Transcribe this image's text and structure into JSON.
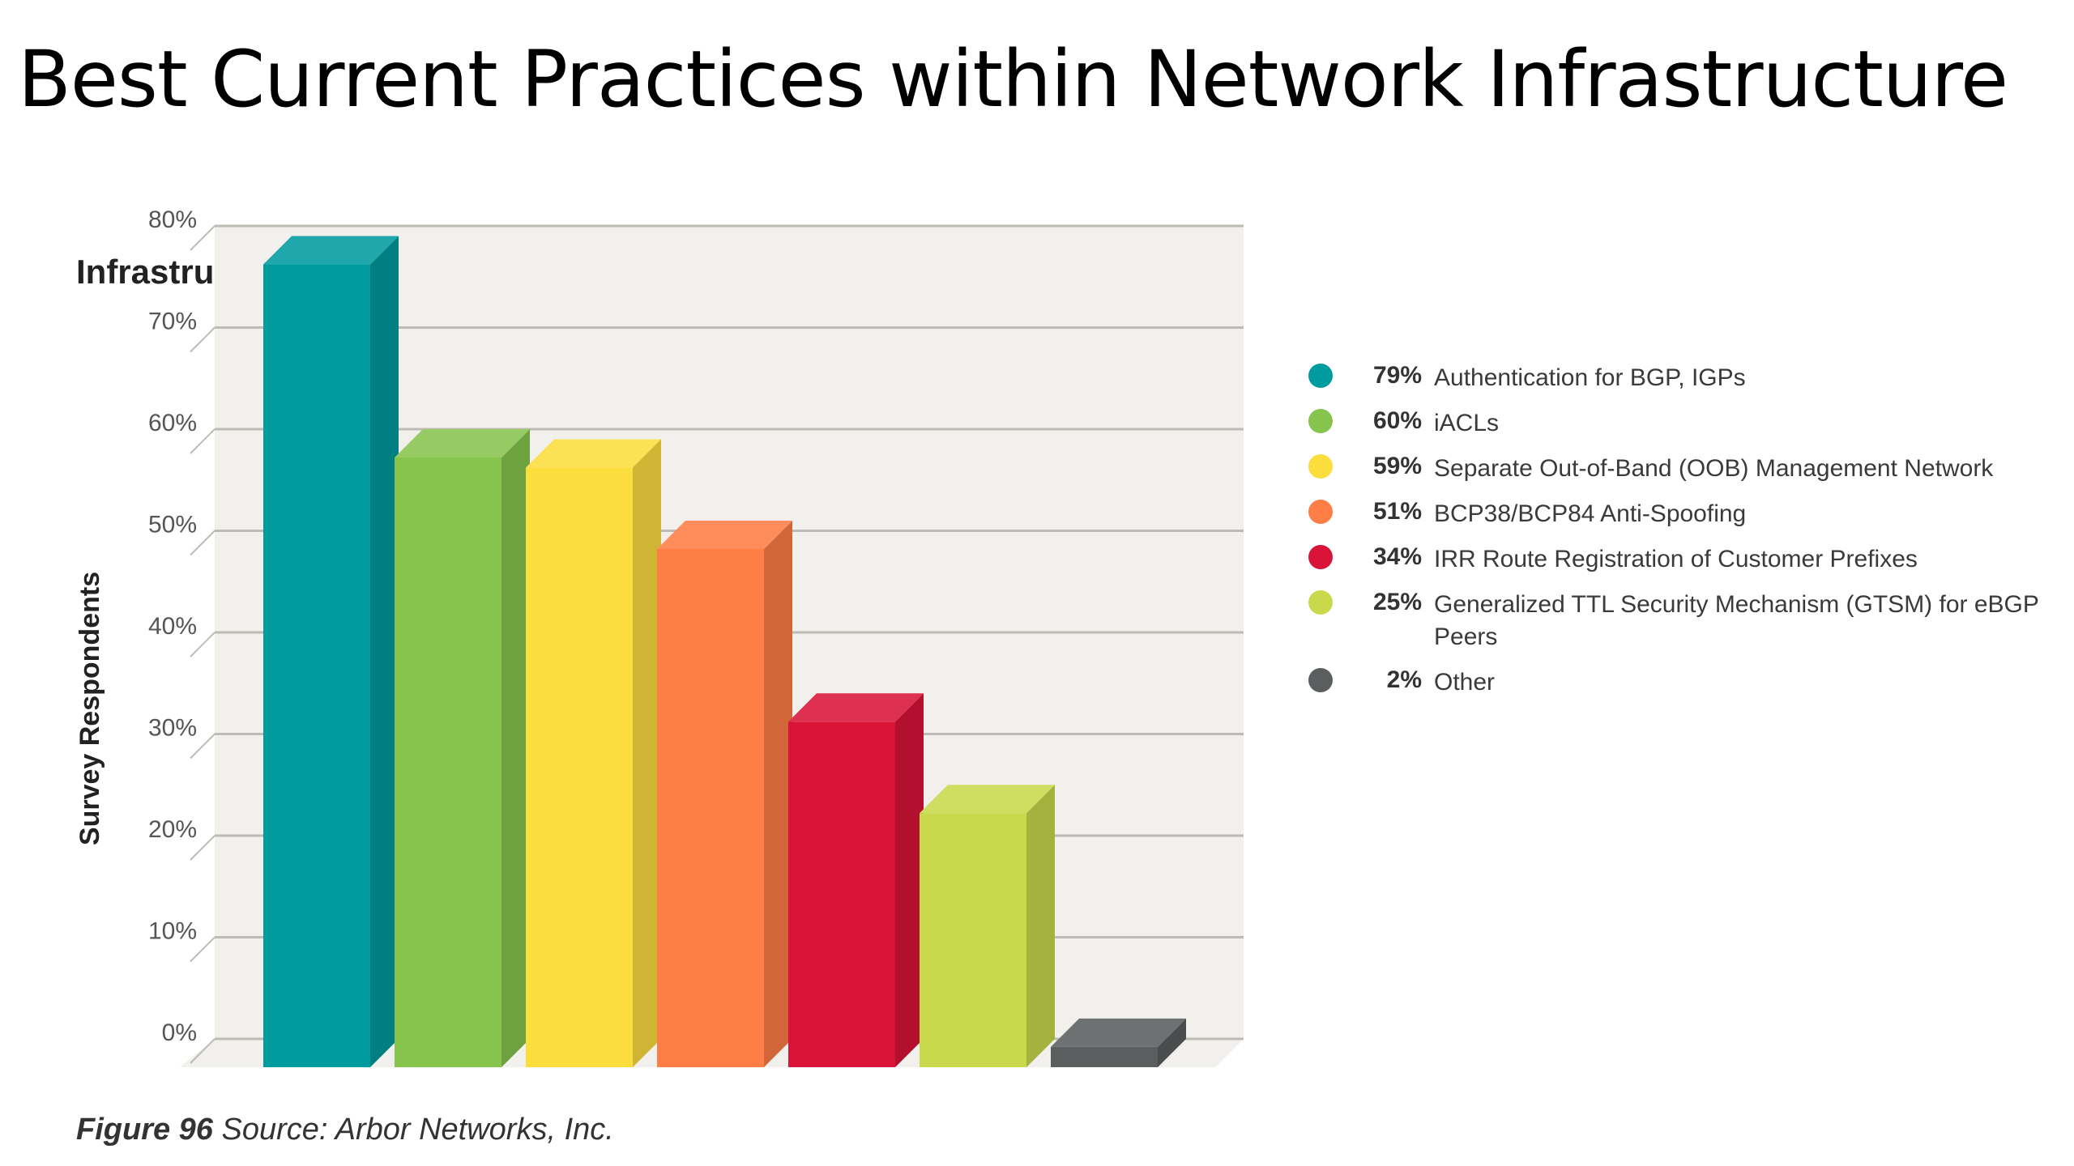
{
  "slide": {
    "title": "Best Current Practices within Network Infrastructure"
  },
  "caption": {
    "figure_label": "Figure 96",
    "source_text": "Source: Arbor Networks, Inc."
  },
  "colors": {
    "teal": "#009B9F",
    "green": "#86C44D",
    "yellow": "#FCDD3E",
    "orange": "#FF7E46",
    "red": "#DA1439",
    "lime": "#C9D94B",
    "gray": "#5A5E5E"
  },
  "chart_data": {
    "type": "bar",
    "title": "Infrastructure BCPs Followed",
    "ylabel": "Survey Respondents",
    "xlabel": "",
    "ylim": [
      0,
      80
    ],
    "yticks": [
      "0%",
      "10%",
      "20%",
      "30%",
      "40%",
      "50%",
      "60%",
      "70%",
      "80%"
    ],
    "grid": true,
    "legend_position": "right",
    "categories": [
      "Authentication for BGP, IGPs",
      "iACLs",
      "Separate Out-of-Band (OOB) Management Network",
      "BCP38/BCP84 Anti-Spoofing",
      "IRR Route Registration of Customer Prefixes",
      "Generalized TTL Security Mechanism (GTSM) for eBGP Peers",
      "Other"
    ],
    "values": [
      79,
      60,
      59,
      51,
      34,
      25,
      2
    ],
    "value_labels": [
      "79%",
      "60%",
      "59%",
      "51%",
      "34%",
      "25%",
      "2%"
    ],
    "bar_colors": [
      "#009B9F",
      "#86C44D",
      "#FCDD3E",
      "#FF7E46",
      "#DA1439",
      "#C9D94B",
      "#5A5E5E"
    ],
    "legend": [
      {
        "value": "79%",
        "label": "Authentication for BGP, IGPs",
        "color": "#009B9F"
      },
      {
        "value": "60%",
        "label": "iACLs",
        "color": "#86C44D"
      },
      {
        "value": "59%",
        "label": "Separate Out-of-Band (OOB) Management Network",
        "color": "#FCDD3E"
      },
      {
        "value": "51%",
        "label": "BCP38/BCP84 Anti-Spoofing",
        "color": "#FF7E46"
      },
      {
        "value": "34%",
        "label": "IRR Route Registration of Customer Prefixes",
        "color": "#DA1439"
      },
      {
        "value": "25%",
        "label": "Generalized TTL Security Mechanism (GTSM) for eBGP Peers",
        "color": "#C9D94B"
      },
      {
        "value": "2%",
        "label": "Other",
        "color": "#5A5E5E"
      }
    ]
  }
}
